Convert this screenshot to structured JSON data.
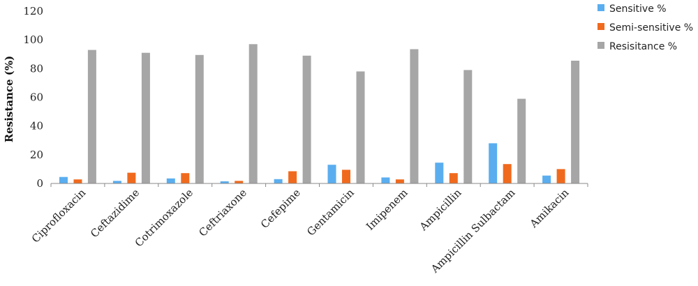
{
  "chart_data": {
    "type": "bar",
    "title": "",
    "xlabel": "",
    "ylabel": "Resistance (%)",
    "ylim": [
      0,
      120
    ],
    "yticks": [
      "0",
      "20",
      "40",
      "60",
      "80",
      "100",
      "120"
    ],
    "grid": false,
    "legend_position": "top-right",
    "categories": [
      "Ciprofloxacin",
      "Ceftazidime",
      "Cotrimoxazole",
      "Ceftriaxone",
      "Cefepime",
      "Gentamicin",
      "Imipenem",
      "Ampicillin",
      "Ampicillin Sulbactam",
      "Amikacin"
    ],
    "series": [
      {
        "name": "Sensitive %",
        "color": "#5aaeef",
        "values": [
          4.5,
          1.8,
          3.5,
          1.5,
          3,
          13,
          4.2,
          14.5,
          28,
          5.5
        ]
      },
      {
        "name": "Semi-sensitive %",
        "color": "#f06a1e",
        "values": [
          2.8,
          7.5,
          7.2,
          1.8,
          8.5,
          9.5,
          2.8,
          7.2,
          13.5,
          10
        ]
      },
      {
        "name": "Resisitance %",
        "color": "#a6a6a6",
        "values": [
          93,
          91,
          89.5,
          97,
          89,
          78,
          93.5,
          79,
          59,
          85.5
        ]
      }
    ]
  }
}
